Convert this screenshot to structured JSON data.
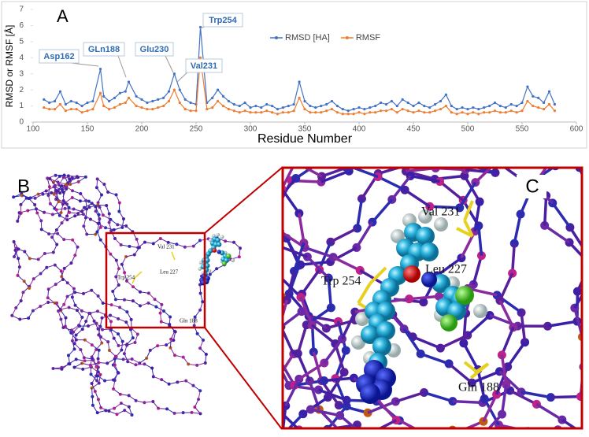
{
  "chart_data": {
    "type": "line",
    "panel_label": "A",
    "xlabel": "Residue Number",
    "ylabel": "RMSD or RMSF [Å]",
    "xlim": [
      100,
      600
    ],
    "xticks": [
      100,
      150,
      200,
      250,
      300,
      350,
      400,
      450,
      500,
      550,
      600
    ],
    "ylim": [
      0,
      7
    ],
    "yticks": [
      0,
      1,
      2,
      3,
      4,
      5,
      6,
      7
    ],
    "grid": false,
    "legend": "top",
    "x": [
      110,
      115,
      120,
      125,
      130,
      135,
      140,
      145,
      150,
      155,
      162,
      165,
      170,
      175,
      180,
      185,
      188,
      195,
      200,
      205,
      210,
      215,
      220,
      225,
      230,
      235,
      240,
      245,
      250,
      254,
      260,
      265,
      270,
      275,
      280,
      285,
      290,
      295,
      300,
      305,
      310,
      315,
      320,
      325,
      330,
      335,
      340,
      345,
      350,
      355,
      360,
      365,
      370,
      375,
      380,
      385,
      390,
      395,
      400,
      405,
      410,
      415,
      420,
      425,
      430,
      435,
      440,
      445,
      450,
      455,
      460,
      465,
      470,
      475,
      480,
      485,
      490,
      495,
      500,
      505,
      510,
      515,
      520,
      525,
      530,
      535,
      540,
      545,
      550,
      555,
      560,
      565,
      570,
      575,
      580
    ],
    "series": [
      {
        "name": "RMSD [HA]",
        "color": "#4472c4",
        "values": [
          1.4,
          1.2,
          1.3,
          1.9,
          1.1,
          1.3,
          1.2,
          1.0,
          1.2,
          1.3,
          3.3,
          1.6,
          1.3,
          1.5,
          1.8,
          1.9,
          2.5,
          1.6,
          1.4,
          1.2,
          1.3,
          1.4,
          1.5,
          1.9,
          3.0,
          2.0,
          1.4,
          1.2,
          1.1,
          5.9,
          1.2,
          1.5,
          2.0,
          1.6,
          1.3,
          1.1,
          1.0,
          1.2,
          0.9,
          1.0,
          0.9,
          1.1,
          1.0,
          0.8,
          0.9,
          1.0,
          1.1,
          2.5,
          1.3,
          1.0,
          0.9,
          1.0,
          1.1,
          1.3,
          1.0,
          0.8,
          0.7,
          0.8,
          0.9,
          0.8,
          0.9,
          1.0,
          1.2,
          1.1,
          1.3,
          1.0,
          1.4,
          1.2,
          1.0,
          1.2,
          1.0,
          0.9,
          1.1,
          1.3,
          1.7,
          1.0,
          0.8,
          0.9,
          0.8,
          0.9,
          0.8,
          0.9,
          1.0,
          1.2,
          1.0,
          0.9,
          1.1,
          1.0,
          1.2,
          2.2,
          1.6,
          1.5,
          1.2,
          1.9,
          1.1
        ]
      },
      {
        "name": "RMSF",
        "color": "#ed7d31",
        "values": [
          0.9,
          0.8,
          0.8,
          1.1,
          0.7,
          0.8,
          0.8,
          0.6,
          0.7,
          0.8,
          1.8,
          1.0,
          0.8,
          0.9,
          1.1,
          1.2,
          1.5,
          1.0,
          0.9,
          0.8,
          0.8,
          0.9,
          1.0,
          1.3,
          2.0,
          1.2,
          0.8,
          0.7,
          0.7,
          4.0,
          0.8,
          0.9,
          1.3,
          1.0,
          0.8,
          0.7,
          0.6,
          0.7,
          0.6,
          0.6,
          0.6,
          0.7,
          0.6,
          0.5,
          0.6,
          0.6,
          0.7,
          1.5,
          0.8,
          0.6,
          0.6,
          0.6,
          0.7,
          0.8,
          0.6,
          0.5,
          0.5,
          0.5,
          0.6,
          0.5,
          0.6,
          0.6,
          0.7,
          0.7,
          0.8,
          0.6,
          0.8,
          0.7,
          0.6,
          0.7,
          0.6,
          0.6,
          0.7,
          0.8,
          1.0,
          0.6,
          0.5,
          0.6,
          0.5,
          0.6,
          0.5,
          0.6,
          0.6,
          0.7,
          0.6,
          0.6,
          0.7,
          0.6,
          0.7,
          1.3,
          1.0,
          0.9,
          0.8,
          1.1,
          0.7
        ]
      }
    ],
    "annotations": [
      "Asp162",
      "GLn188",
      "Glu230",
      "Val231",
      "Trp254"
    ]
  },
  "panel_b": {
    "label": "B",
    "residues": [
      "Val 231",
      "Leu 227",
      "Trp 254",
      "Gln 188"
    ]
  },
  "panel_c": {
    "label": "C",
    "residues": [
      "Val 231",
      "Leu 227",
      "Trp 254",
      "Gln 188"
    ]
  }
}
